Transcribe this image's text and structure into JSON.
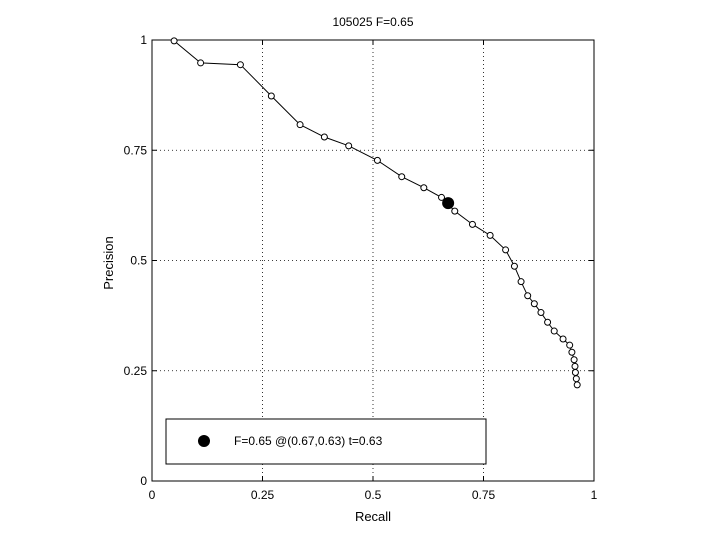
{
  "chart_data": {
    "type": "line",
    "title": "105025 F=0.65",
    "xlabel": "Recall",
    "ylabel": "Precision",
    "xlim": [
      0,
      1
    ],
    "ylim": [
      0,
      1
    ],
    "xticks": [
      0,
      0.25,
      0.5,
      0.75,
      1
    ],
    "yticks": [
      0,
      0.25,
      0.5,
      0.75,
      1
    ],
    "xtick_labels": [
      "0",
      "0.25",
      "0.5",
      "0.75",
      "1"
    ],
    "ytick_labels": [
      "0",
      "0.25",
      "0.5",
      "0.75",
      "1"
    ],
    "grid": true,
    "legend_position": "bottom-left",
    "series": [
      {
        "marker": "open-circle",
        "x": [
          0.05,
          0.11,
          0.2,
          0.27,
          0.335,
          0.39,
          0.445,
          0.51,
          0.565,
          0.615,
          0.655,
          0.685,
          0.725,
          0.765,
          0.8,
          0.82,
          0.835,
          0.85,
          0.865,
          0.88,
          0.895,
          0.91,
          0.93,
          0.945,
          0.95,
          0.955,
          0.957,
          0.958,
          0.96,
          0.962
        ],
        "y": [
          0.998,
          0.948,
          0.944,
          0.873,
          0.808,
          0.78,
          0.76,
          0.727,
          0.69,
          0.665,
          0.643,
          0.612,
          0.582,
          0.557,
          0.524,
          0.487,
          0.452,
          0.42,
          0.402,
          0.382,
          0.36,
          0.34,
          0.322,
          0.308,
          0.292,
          0.275,
          0.26,
          0.246,
          0.232,
          0.218
        ]
      }
    ],
    "highlight_point": {
      "x": 0.67,
      "y": 0.63,
      "marker": "filled-circle"
    },
    "legend": {
      "text": "F=0.65 @(0.67,0.63) t=0.63"
    }
  }
}
